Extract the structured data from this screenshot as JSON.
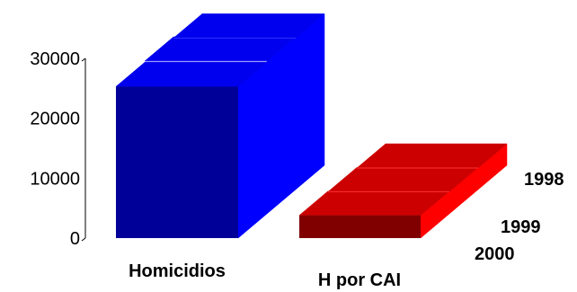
{
  "chart_data": {
    "type": "bar",
    "variant": "3d-stacked-depth",
    "title": "",
    "xlabel": "",
    "ylabel": "",
    "ylim": [
      0,
      30000
    ],
    "yticks": [
      "0",
      "10000",
      "20000",
      "30000"
    ],
    "categories": [
      "Homicidios",
      "H por CAI"
    ],
    "series": [
      {
        "name": "2000",
        "values": [
          25300,
          3800
        ]
      },
      {
        "name": "1999",
        "values": [
          25500,
          3700
        ]
      },
      {
        "name": "1998",
        "values": [
          25300,
          3600
        ]
      }
    ],
    "colors": {
      "Homicidios": {
        "front": "#000099",
        "side": "#0000ff",
        "top": "#0000ee",
        "line": "#3333ff"
      },
      "H por CAI": {
        "front": "#800000",
        "side": "#ff0000",
        "top": "#cc0000",
        "line": "#ff3333"
      }
    },
    "grid": false,
    "legend": "none"
  }
}
